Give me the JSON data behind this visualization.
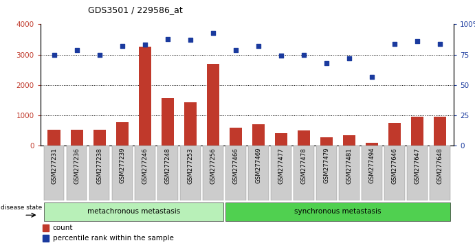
{
  "title": "GDS3501 / 229586_at",
  "samples": [
    "GSM277231",
    "GSM277236",
    "GSM277238",
    "GSM277239",
    "GSM277246",
    "GSM277248",
    "GSM277253",
    "GSM277256",
    "GSM277466",
    "GSM277469",
    "GSM277477",
    "GSM277478",
    "GSM277479",
    "GSM277481",
    "GSM277494",
    "GSM277646",
    "GSM277647",
    "GSM277648"
  ],
  "counts": [
    520,
    540,
    530,
    780,
    3270,
    1570,
    1440,
    2700,
    600,
    720,
    410,
    500,
    280,
    340,
    110,
    760,
    950,
    960
  ],
  "percentile": [
    75,
    79,
    75,
    82,
    83,
    88,
    87,
    93,
    79,
    82,
    74,
    75,
    68,
    72,
    57,
    84,
    86,
    84
  ],
  "group1_label": "metachronous metastasis",
  "group2_label": "synchronous metastasis",
  "group1_count": 8,
  "bar_color": "#c0392b",
  "dot_color": "#1a3a9e",
  "group1_bg": "#b8f0b8",
  "group2_bg": "#50d050",
  "tick_label_bg": "#cccccc",
  "ylim_left": [
    0,
    4000
  ],
  "ylim_right": [
    0,
    100
  ],
  "yticks_left": [
    0,
    1000,
    2000,
    3000,
    4000
  ],
  "yticks_right": [
    0,
    25,
    50,
    75,
    100
  ],
  "legend_count": "count",
  "legend_percentile": "percentile rank within the sample",
  "disease_state_label": "disease state"
}
